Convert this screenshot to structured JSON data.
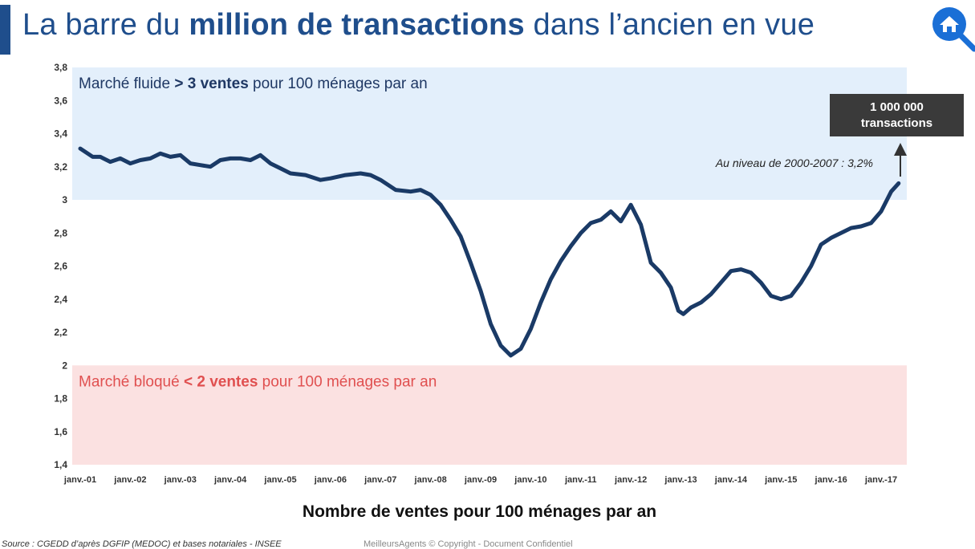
{
  "header": {
    "title_pre": "La barre du ",
    "title_bold": "million de transactions",
    "title_post": " dans l’ancien en vue",
    "home_icon": "home-search-icon"
  },
  "footer": {
    "source": "Source : CGEDD d’après DGFIP (MEDOC) et bases notariales - INSEE",
    "copyright": "MeilleursAgents © Copyright - Document Confidentiel"
  },
  "chart_data": {
    "type": "line",
    "xlabel": "Nombre de ventes pour 100 ménages par an",
    "ylim": [
      1.4,
      3.8
    ],
    "yticks": [
      "3,8",
      "3,6",
      "3,4",
      "3,2",
      "3",
      "2,8",
      "2,6",
      "2,4",
      "2,2",
      "2",
      "1,8",
      "1,6",
      "1,4"
    ],
    "x_tick_labels": [
      "janv.-01",
      "janv.-02",
      "janv.-03",
      "janv.-04",
      "janv.-05",
      "janv.-06",
      "janv.-07",
      "janv.-08",
      "janv.-09",
      "janv.-10",
      "janv.-11",
      "janv.-12",
      "janv.-13",
      "janv.-14",
      "janv.-15",
      "janv.-16",
      "janv.-17"
    ],
    "colors": {
      "line": "#1a3a66",
      "fluid_band": "#e3effb",
      "blocked_band": "#fbe1e1",
      "blocked_text": "#e05050",
      "annot_box": "#3a3a3a"
    },
    "bands": [
      {
        "ymin": 3.0,
        "ymax": 3.8,
        "text_pre": "Marché fluide ",
        "text_bold": "> 3 ventes",
        "text_post": " pour 100 ménages par an"
      },
      {
        "ymin": 1.4,
        "ymax": 2.0,
        "text_pre": "Marché bloqué ",
        "text_bold": "< 2 ventes",
        "text_post": " pour 100 ménages par an"
      }
    ],
    "annotations": {
      "box_line1": "1 000 000",
      "box_line2": "transactions",
      "note": "Au niveau de 2000-2007 : 3,2%"
    },
    "series": [
      {
        "x": [
          2001.0,
          2001.1,
          2001.25,
          2001.4,
          2001.6,
          2001.8,
          2002.0,
          2002.2,
          2002.4,
          2002.6,
          2002.8,
          2003.0,
          2003.2,
          2003.4,
          2003.6,
          2003.8,
          2004.0,
          2004.2,
          2004.4,
          2004.6,
          2004.8,
          2005.0,
          2005.2,
          2005.5,
          2005.8,
          2006.0,
          2006.3,
          2006.6,
          2006.8,
          2007.0,
          2007.3,
          2007.6,
          2007.8,
          2008.0,
          2008.2,
          2008.4,
          2008.6,
          2008.8,
          2009.0,
          2009.2,
          2009.4,
          2009.6,
          2009.8,
          2010.0,
          2010.2,
          2010.4,
          2010.6,
          2010.8,
          2011.0,
          2011.2,
          2011.4,
          2011.6,
          2011.8,
          2012.0,
          2012.2,
          2012.4,
          2012.6,
          2012.8,
          2012.95,
          2013.05,
          2013.2,
          2013.4,
          2013.6,
          2013.8,
          2014.0,
          2014.2,
          2014.4,
          2014.6,
          2014.8,
          2015.0,
          2015.2,
          2015.4,
          2015.6,
          2015.8,
          2016.0,
          2016.2,
          2016.4,
          2016.6,
          2016.8,
          2017.0,
          2017.2,
          2017.35
        ],
        "y": [
          3.31,
          3.29,
          3.26,
          3.26,
          3.23,
          3.25,
          3.22,
          3.24,
          3.25,
          3.28,
          3.26,
          3.27,
          3.22,
          3.21,
          3.2,
          3.24,
          3.25,
          3.25,
          3.24,
          3.27,
          3.22,
          3.19,
          3.16,
          3.15,
          3.12,
          3.13,
          3.15,
          3.16,
          3.15,
          3.12,
          3.06,
          3.05,
          3.06,
          3.03,
          2.97,
          2.88,
          2.78,
          2.62,
          2.45,
          2.25,
          2.12,
          2.06,
          2.1,
          2.22,
          2.38,
          2.52,
          2.63,
          2.72,
          2.8,
          2.86,
          2.88,
          2.93,
          2.87,
          2.97,
          2.85,
          2.62,
          2.56,
          2.47,
          2.33,
          2.31,
          2.35,
          2.38,
          2.43,
          2.5,
          2.57,
          2.58,
          2.56,
          2.5,
          2.42,
          2.4,
          2.42,
          2.5,
          2.6,
          2.73,
          2.77,
          2.8,
          2.83,
          2.84,
          2.86,
          2.93,
          3.05,
          3.1
        ]
      }
    ]
  }
}
